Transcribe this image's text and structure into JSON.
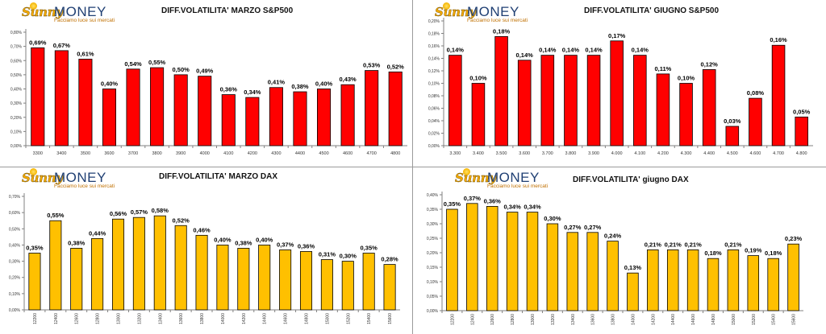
{
  "logo": {
    "sunny": "Sunny",
    "money": "MONEY",
    "tagline": "Facciamo luce sui mercati"
  },
  "chart_data": [
    {
      "type": "bar",
      "title": "DIFF.VOLATILITA' MARZO S&P500",
      "color": "#ff0000",
      "label_decimals": 2,
      "tick_decimals": 2,
      "ylim": [
        0,
        0.8
      ],
      "ystep": 0.1,
      "categories": [
        "3300",
        "3400",
        "3500",
        "3600",
        "3700",
        "3800",
        "3900",
        "4000",
        "4100",
        "4200",
        "4300",
        "4400",
        "4500",
        "4600",
        "4700",
        "4800"
      ],
      "values": [
        0.69,
        0.67,
        0.61,
        0.4,
        0.54,
        0.55,
        0.5,
        0.49,
        0.36,
        0.34,
        0.41,
        0.38,
        0.4,
        0.43,
        0.53,
        0.52
      ]
    },
    {
      "type": "bar",
      "title": "DIFF.VOLATILITA' GIUGNO S&P500",
      "color": "#ff0000",
      "label_decimals": 2,
      "tick_decimals": 2,
      "ylim": [
        0,
        0.2
      ],
      "ystep": 0.02,
      "categories": [
        "3.300",
        "3.400",
        "3.500",
        "3.600",
        "3.700",
        "3.800",
        "3.900",
        "4.000",
        "4.100",
        "4.200",
        "4.300",
        "4.400",
        "4.500",
        "4.600",
        "4.700",
        "4.800"
      ],
      "values": [
        0.145,
        0.1,
        0.175,
        0.137,
        0.145,
        0.145,
        0.145,
        0.168,
        0.145,
        0.115,
        0.1,
        0.122,
        0.031,
        0.076,
        0.161,
        0.046
      ],
      "data_labels": [
        "0,14%",
        "0,10%",
        "0,18%",
        "0,14%",
        "0,14%",
        "0,14%",
        "0,14%",
        "0,17%",
        "0,14%",
        "0,11%",
        "0,10%",
        "0,12%",
        "0,03%",
        "0,08%",
        "0,16%",
        "0,05%"
      ]
    },
    {
      "type": "bar",
      "title": "DIFF.VOLATILITA' MARZO DAX",
      "color": "#ffc000",
      "label_decimals": 2,
      "tick_decimals": 2,
      "ylim": [
        0,
        0.7
      ],
      "ystep": 0.1,
      "categories": [
        "12200",
        "12400",
        "12600",
        "12800",
        "13000",
        "13200",
        "13400",
        "13600",
        "13800",
        "14000",
        "14200",
        "14400",
        "14600",
        "14800",
        "15000",
        "15200",
        "15400",
        "15600"
      ],
      "values": [
        0.35,
        0.55,
        0.38,
        0.44,
        0.56,
        0.57,
        0.58,
        0.52,
        0.46,
        0.4,
        0.38,
        0.4,
        0.37,
        0.36,
        0.31,
        0.3,
        0.35,
        0.28
      ]
    },
    {
      "type": "bar",
      "title": "DIFF.VOLATILITA' giugno DAX",
      "color": "#ffc000",
      "label_decimals": 2,
      "tick_decimals": 2,
      "ylim": [
        0,
        0.4
      ],
      "ystep": 0.05,
      "categories": [
        "12200",
        "12400",
        "12600",
        "12800",
        "13000",
        "13200",
        "13400",
        "13600",
        "13800",
        "14000",
        "14200",
        "14400",
        "14600",
        "14800",
        "15000",
        "15200",
        "15400",
        "15600"
      ],
      "values": [
        0.35,
        0.37,
        0.36,
        0.34,
        0.34,
        0.3,
        0.27,
        0.27,
        0.24,
        0.13,
        0.21,
        0.21,
        0.21,
        0.18,
        0.21,
        0.19,
        0.18,
        0.23
      ]
    }
  ]
}
